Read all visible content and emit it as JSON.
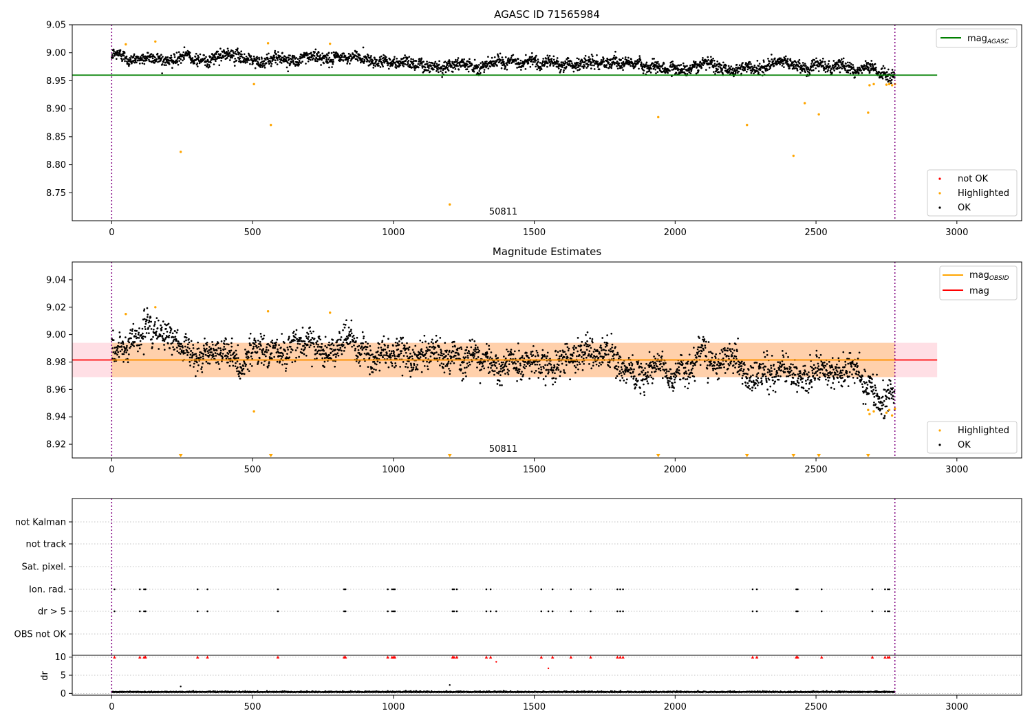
{
  "chart_data": [
    {
      "type": "scatter",
      "title": "AGASC ID 71565984",
      "xlim": [
        -140,
        3230
      ],
      "ylim": [
        8.7,
        9.05
      ],
      "yticks": [
        "8.75",
        "8.80",
        "8.85",
        "8.90",
        "8.95",
        "9.00",
        "9.05"
      ],
      "xticks": [
        "0",
        "500",
        "1000",
        "1500",
        "2000",
        "2500",
        "3000"
      ],
      "obsid_label": "50811",
      "obsid_label_x": 1390,
      "obs_bounds": [
        0,
        2780
      ],
      "reference_lines": [
        {
          "name": "mag_AGASC",
          "label": "mag",
          "subscript": "AGASC",
          "y": 8.96,
          "x_range": [
            -140,
            2930
          ],
          "color": "#008000"
        }
      ],
      "legend_top": [
        {
          "label": "mag",
          "subscript": "AGASC",
          "color": "#008000",
          "kind": "line"
        }
      ],
      "legend_bottom": [
        {
          "label": "not OK",
          "color": "#ff0000",
          "kind": "dot"
        },
        {
          "label": "Highlighted",
          "color": "#ffa500",
          "kind": "dot"
        },
        {
          "label": "OK",
          "color": "#000000",
          "kind": "dot"
        }
      ],
      "trend": {
        "x": [
          0,
          400,
          800,
          1200,
          1600,
          2000,
          2400,
          2650,
          2780
        ],
        "y": [
          8.993,
          8.992,
          8.989,
          8.985,
          8.982,
          8.976,
          8.977,
          8.972,
          8.958
        ]
      },
      "scatter_sd": 0.0095,
      "ok_points_n": 2780,
      "highlighted": {
        "x": [
          50,
          155,
          245,
          505,
          555,
          565,
          775,
          1200,
          1940,
          2255,
          2420,
          2460,
          2510,
          2685,
          2690,
          2705,
          2750,
          2760,
          2770,
          2780
        ],
        "y": [
          9.015,
          9.02,
          8.823,
          8.944,
          9.017,
          8.871,
          9.016,
          8.729,
          8.885,
          8.871,
          8.816,
          8.91,
          8.89,
          8.893,
          8.942,
          8.944,
          8.943,
          8.944,
          8.942,
          8.944
        ]
      }
    },
    {
      "type": "scatter",
      "title": "Magnitude Estimates",
      "xlim": [
        -140,
        3230
      ],
      "ylim": [
        8.91,
        9.053
      ],
      "yticks": [
        "8.92",
        "8.94",
        "8.96",
        "8.98",
        "9.00",
        "9.02",
        "9.04"
      ],
      "xticks": [
        "0",
        "500",
        "1000",
        "1500",
        "2000",
        "2500",
        "3000"
      ],
      "obsid_label": "50811",
      "obsid_label_x": 1390,
      "obs_bounds": [
        0,
        2780
      ],
      "reference_lines": [
        {
          "name": "mag",
          "label": "mag",
          "y": 8.9815,
          "x_range": [
            -140,
            2930
          ],
          "color": "#ff0000"
        },
        {
          "name": "mag_OBSID",
          "label": "mag",
          "subscript": "OBSID",
          "y": 8.9815,
          "x_range": [
            0,
            2780
          ],
          "color": "#ffa500"
        }
      ],
      "bands": [
        {
          "y_range": [
            8.969,
            8.994
          ],
          "x_range": [
            -140,
            2930
          ],
          "color": "#ffc0cb",
          "opacity": 0.5
        },
        {
          "y_range": [
            8.969,
            8.994
          ],
          "x_range": [
            0,
            2780
          ],
          "color": "#ffa500",
          "opacity": 0.25
        }
      ],
      "legend_top": [
        {
          "label": "mag",
          "subscript": "OBSID",
          "color": "#ffa500",
          "kind": "line"
        },
        {
          "label": "mag",
          "color": "#ff0000",
          "kind": "line"
        }
      ],
      "legend_bottom": [
        {
          "label": "Highlighted",
          "color": "#ffa500",
          "kind": "dot"
        },
        {
          "label": "OK",
          "color": "#000000",
          "kind": "dot"
        }
      ],
      "trend": {
        "x": [
          0,
          400,
          800,
          1200,
          1600,
          2000,
          2400,
          2650,
          2780
        ],
        "y": [
          8.993,
          8.992,
          8.989,
          8.985,
          8.982,
          8.976,
          8.977,
          8.972,
          8.958
        ]
      },
      "scatter_sd": 0.0095,
      "ok_points_n": 2780,
      "highlighted": {
        "x": [
          50,
          155,
          505,
          555,
          775,
          2685,
          2690,
          2705,
          2750,
          2760,
          2770,
          2780
        ],
        "y": [
          9.015,
          9.02,
          8.944,
          9.017,
          9.016,
          8.945,
          8.942,
          8.944,
          8.943,
          8.945,
          8.941,
          8.946
        ]
      },
      "below_range_markers_x": [
        245,
        565,
        1200,
        1940,
        2255,
        2420,
        2510,
        2685
      ]
    },
    {
      "type": "scatter",
      "title": "",
      "xlim": [
        -140,
        3230
      ],
      "xticks": [
        "0",
        "500",
        "1000",
        "1500",
        "2000",
        "2500",
        "3000"
      ],
      "obs_bounds": [
        0,
        2780
      ],
      "flag_rows": [
        "not Kalman",
        "not track",
        "Sat. pixel.",
        "Ion. rad.",
        "dr > 5",
        "OBS not OK"
      ],
      "flag_events": {
        "Ion. rad.": [
          10,
          100,
          115,
          120,
          305,
          340,
          590,
          825,
          830,
          980,
          995,
          1000,
          1005,
          1210,
          1215,
          1225,
          1330,
          1345,
          1525,
          1565,
          1630,
          1700,
          1795,
          1805,
          1815,
          2275,
          2290,
          2430,
          2435,
          2520,
          2700,
          2745,
          2755,
          2760
        ],
        "dr > 5": [
          10,
          100,
          115,
          120,
          305,
          340,
          590,
          825,
          830,
          980,
          995,
          1000,
          1005,
          1210,
          1215,
          1225,
          1330,
          1345,
          1365,
          1525,
          1550,
          1565,
          1630,
          1700,
          1795,
          1805,
          1815,
          2275,
          2290,
          2430,
          2435,
          2520,
          2700,
          2745,
          2755,
          2760
        ]
      },
      "dr_panel": {
        "ylabel": "dr",
        "ylim": [
          -0.5,
          10.5
        ],
        "yticks": [
          "0",
          "5",
          "10"
        ],
        "clipped_x": [
          10,
          100,
          115,
          120,
          305,
          340,
          590,
          825,
          830,
          980,
          995,
          1000,
          1005,
          1210,
          1215,
          1225,
          1330,
          1345,
          1525,
          1565,
          1630,
          1700,
          1795,
          1805,
          1815,
          2275,
          2290,
          2430,
          2435,
          2520,
          2700,
          2745,
          2755,
          2760
        ],
        "extra_points": [
          {
            "x": 1365,
            "y": 8.7,
            "color": "#ff0000"
          },
          {
            "x": 1550,
            "y": 6.9,
            "color": "#ff0000"
          },
          {
            "x": 245,
            "y": 1.9,
            "color": "#000000"
          },
          {
            "x": 1200,
            "y": 2.3,
            "color": "#000000"
          }
        ],
        "baseline": 0.3
      }
    }
  ]
}
